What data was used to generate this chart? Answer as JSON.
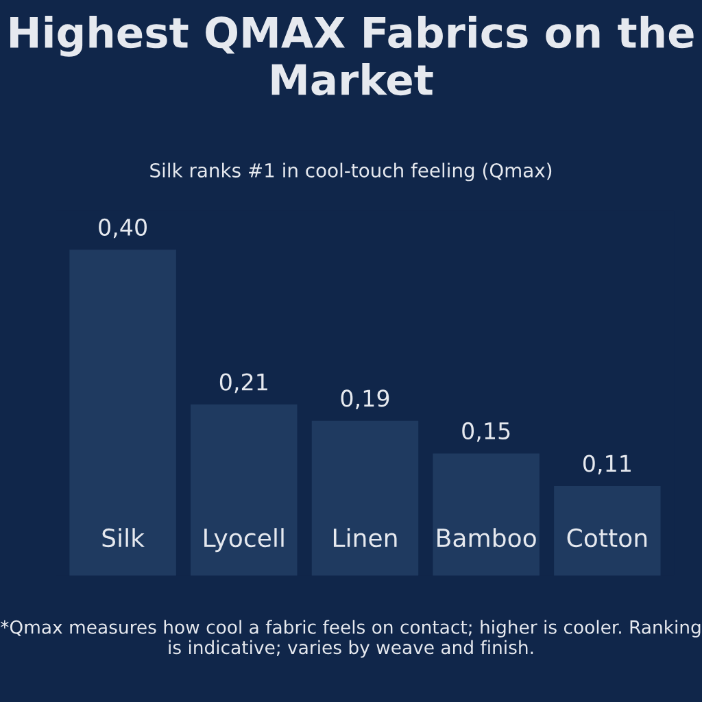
{
  "chart_data": {
    "type": "bar",
    "title": "Highest QMAX Fabrics on the Market",
    "subtitle": "Silk ranks #1 in cool-touch feeling (Qmax)",
    "categories": [
      "Silk",
      "Lyocell",
      "Linen",
      "Bamboo",
      "Cotton"
    ],
    "values": [
      0.4,
      0.21,
      0.19,
      0.15,
      0.11
    ],
    "value_labels": [
      "0,40",
      "0,21",
      "0,19",
      "0,15",
      "0,11"
    ],
    "color": "#1f3a60",
    "grid": false,
    "legend": false,
    "annotations": [
      "*Qmax measures how cool a fabric feels on contact; higher is cooler. Ranking is indicative; varies by weave and finish."
    ]
  }
}
